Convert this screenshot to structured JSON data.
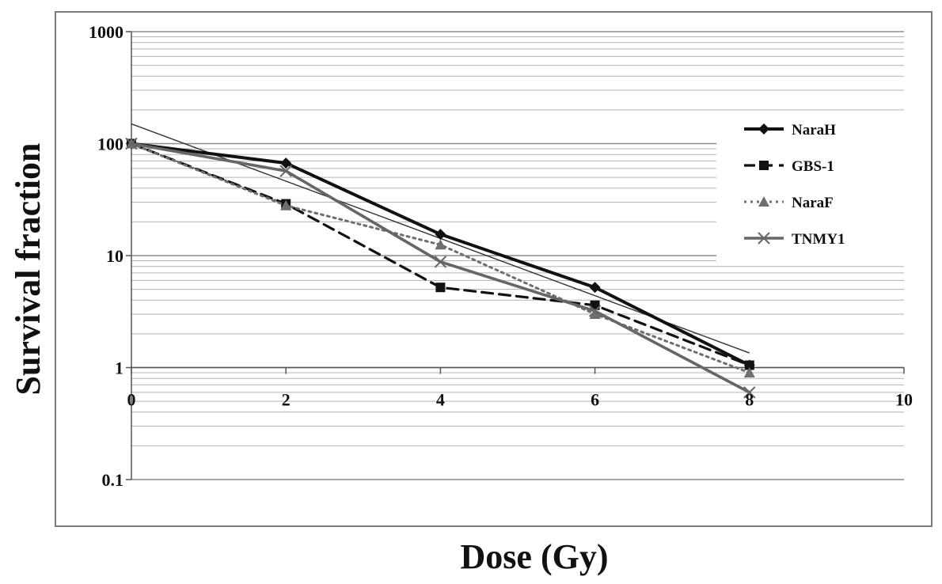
{
  "chart_data": {
    "type": "line",
    "xlabel": "Dose (Gy)",
    "ylabel": "Survival fraction",
    "xlim": [
      0,
      10
    ],
    "ylim": [
      0.1,
      1000
    ],
    "yscale": "log",
    "x_ticks": [
      "0",
      "2",
      "4",
      "6",
      "8",
      "10"
    ],
    "y_ticks": [
      "0.1",
      "1",
      "10",
      "100",
      "1000"
    ],
    "grid": "horizontal",
    "legend_position": "right",
    "series": [
      {
        "name": "NaraH",
        "marker": "diamond",
        "dash": "solid",
        "color": "#111111",
        "x": [
          0,
          2,
          4,
          6,
          8
        ],
        "y": [
          100,
          67,
          15.5,
          5.2,
          1.05
        ]
      },
      {
        "name": "GBS-1",
        "marker": "square",
        "dash": "dashed",
        "color": "#111111",
        "x": [
          0,
          2,
          4,
          6,
          8
        ],
        "y": [
          100,
          29,
          5.2,
          3.6,
          1.05
        ]
      },
      {
        "name": "NaraF",
        "marker": "triangle",
        "dash": "dotted",
        "color": "#6e6e6e",
        "x": [
          0,
          2,
          4,
          6,
          8
        ],
        "y": [
          100,
          28,
          12.5,
          3.0,
          0.9
        ]
      },
      {
        "name": "TNMY1",
        "marker": "x",
        "dash": "solid",
        "color": "#666666",
        "x": [
          0,
          2,
          4,
          6,
          8
        ],
        "y": [
          100,
          57,
          8.8,
          3.2,
          0.6
        ]
      }
    ],
    "trendlines": [
      {
        "x": [
          0,
          8
        ],
        "y": [
          150,
          1.35
        ]
      },
      {
        "x": [
          0,
          2
        ],
        "y": [
          100,
          29
        ]
      }
    ]
  }
}
